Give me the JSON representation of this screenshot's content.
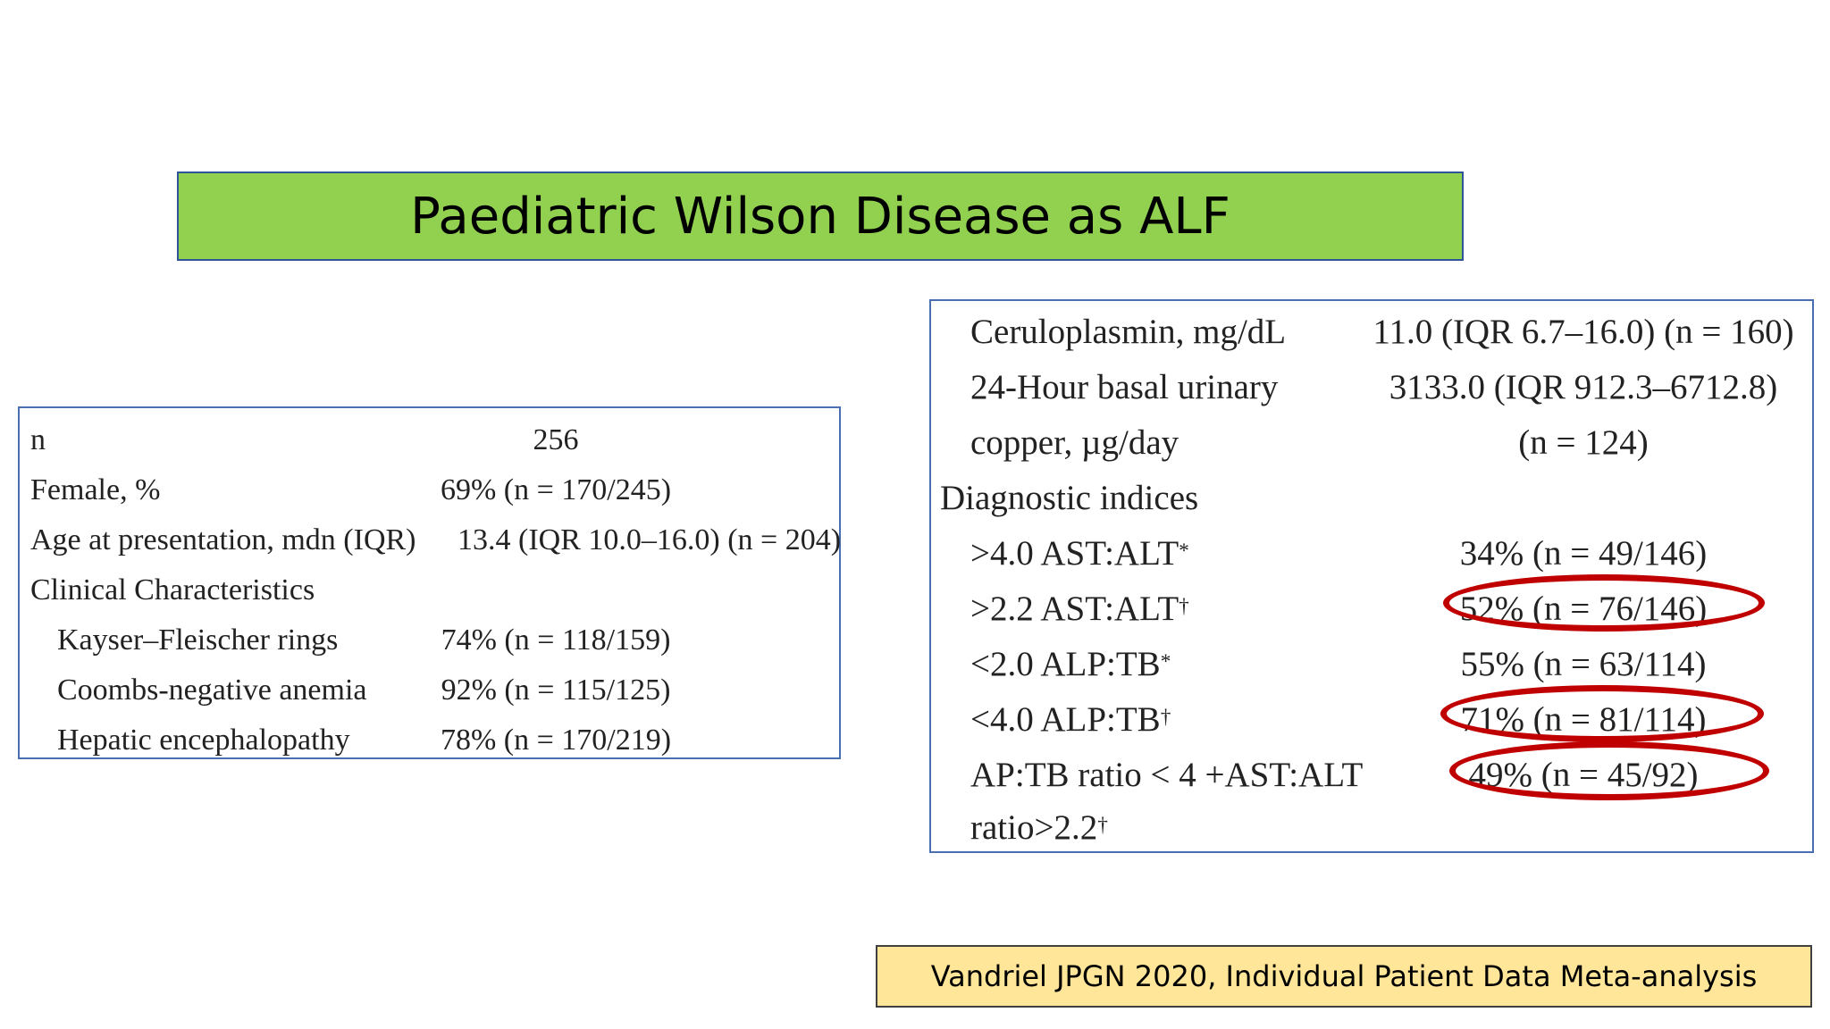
{
  "title": "Paediatric Wilson Disease as ALF",
  "left_table": {
    "rows": [
      {
        "label": "n",
        "value": "256"
      },
      {
        "label": "Female, %",
        "value": "69% (n = 170/245)"
      },
      {
        "label": "Age at presentation, mdn (IQR)",
        "value": "13.4 (IQR 10.0–16.0) (n = 204)"
      },
      {
        "label": "Clinical Characteristics",
        "value": ""
      },
      {
        "label": "Kayser–Fleischer rings",
        "value": "74% (n = 118/159)"
      },
      {
        "label": "Coombs-negative anemia",
        "value": "92% (n = 115/125)"
      },
      {
        "label": "Hepatic encephalopathy",
        "value": "78% (n = 170/219)"
      }
    ]
  },
  "right_table": {
    "rows": [
      {
        "label": "Ceruloplasmin, mg/dL",
        "value": "11.0 (IQR 6.7–16.0) (n = 160)"
      },
      {
        "label": "24-Hour basal urinary",
        "value": "3133.0 (IQR 912.3–6712.8)"
      },
      {
        "label": "copper, µg/day",
        "value": "(n = 124)"
      },
      {
        "label": "Diagnostic indices",
        "value": ""
      },
      {
        "label": ">4.0 AST:ALT",
        "sup": "*",
        "value": "34% (n = 49/146)"
      },
      {
        "label": ">2.2 AST:ALT",
        "sup": "†",
        "value": "52% (n = 76/146)"
      },
      {
        "label": "<2.0 ALP:TB",
        "sup": "*",
        "value": "55% (n = 63/114)"
      },
      {
        "label": "<4.0 ALP:TB",
        "sup": "†",
        "value": "71% (n = 81/114)"
      },
      {
        "label": "AP:TB ratio < 4 +AST:ALT",
        "value": "49% (n = 45/92)"
      },
      {
        "label": "ratio>2.2",
        "sup": "†",
        "value": ""
      }
    ],
    "highlight_color": "#c00000"
  },
  "citation": "Vandriel JPGN 2020, Individual Patient Data Meta-analysis",
  "colors": {
    "title_bg": "#92d050",
    "citation_bg": "#ffe699",
    "table_border": "#4a6fb0"
  }
}
